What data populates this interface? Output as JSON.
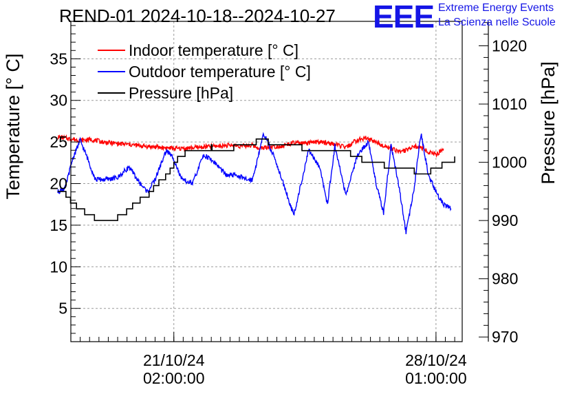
{
  "header": {
    "title": "REND-01 2024-10-18--2024-10-27",
    "logo_text": "EEE",
    "logo_line1": "Extreme Energy Events",
    "logo_line2": "La Scienza nelle Scuole"
  },
  "colors": {
    "indoor": "#ff0000",
    "outdoor": "#0000ff",
    "pressure": "#000000",
    "logo": "#1515e6",
    "grid": "#9a9a9a"
  },
  "chart_data": {
    "type": "line",
    "title": "REND-01 2024-10-18--2024-10-27",
    "ylabel": "Temperature [° C]",
    "y2label": "Pressure [hPa]",
    "xlabel": "",
    "ylim": [
      1,
      39.5
    ],
    "y2lim": [
      969.2,
      1024.2
    ],
    "xlim": [
      -2.75,
      7.7
    ],
    "grid": true,
    "legend_position": "top-left",
    "x_unit": "days since 21/10/24 02:00:00",
    "yticks": [
      5,
      10,
      15,
      20,
      25,
      30,
      35
    ],
    "y2ticks": [
      970,
      980,
      990,
      1000,
      1010,
      1020
    ],
    "xticks": [
      {
        "value": 0.0,
        "line1": "21/10/24",
        "line2": "02:00:00"
      },
      {
        "value": 7.0,
        "line1": "28/10/24",
        "line2": "01:00:00"
      }
    ],
    "series": [
      {
        "name": "Indoor temperature [° C]",
        "axis": "left",
        "x": [
          -3.1,
          -2.8,
          -2.5,
          -2.2,
          -1.9,
          -1.5,
          -1.2,
          -0.8,
          -0.5,
          -0.2,
          0.1,
          0.5,
          0.8,
          1.1,
          1.5,
          1.8,
          2.1,
          2.3,
          2.5,
          2.9,
          3.2,
          3.5,
          3.8,
          4.1,
          4.4,
          4.6,
          4.8,
          5.1,
          5.4,
          5.6,
          5.8,
          6.1,
          6.4,
          6.6,
          6.8,
          7.0,
          7.2
        ],
        "values": [
          25.6,
          25.4,
          25.2,
          25.3,
          25.0,
          24.8,
          24.7,
          24.5,
          24.4,
          24.3,
          24.2,
          24.3,
          24.4,
          24.5,
          24.6,
          24.5,
          24.6,
          24.2,
          24.4,
          24.5,
          24.9,
          24.8,
          25.0,
          24.9,
          24.6,
          24.3,
          25.0,
          25.5,
          25.0,
          24.6,
          24.2,
          23.8,
          24.5,
          24.3,
          23.8,
          23.5,
          24.2
        ]
      },
      {
        "name": "Outdoor temperature [° C]",
        "axis": "left",
        "x": [
          -3.1,
          -2.9,
          -2.7,
          -2.5,
          -2.3,
          -2.1,
          -1.8,
          -1.5,
          -1.2,
          -0.9,
          -0.7,
          -0.5,
          -0.2,
          0.0,
          0.2,
          0.5,
          0.8,
          1.1,
          1.4,
          1.7,
          1.9,
          2.1,
          2.4,
          2.7,
          3.0,
          3.2,
          3.4,
          3.6,
          3.9,
          4.1,
          4.3,
          4.6,
          4.9,
          5.2,
          5.4,
          5.6,
          5.8,
          6.0,
          6.2,
          6.4,
          6.6,
          6.8,
          7.0,
          7.2,
          7.4
        ],
        "values": [
          19.0,
          19.5,
          23.0,
          25.2,
          23.0,
          20.5,
          20.5,
          20.7,
          22.0,
          20.0,
          19.0,
          20.5,
          24.0,
          23.0,
          20.5,
          20.0,
          23.5,
          22.5,
          21.0,
          21.0,
          20.5,
          20.5,
          26.0,
          23.0,
          19.0,
          16.2,
          20.0,
          24.0,
          22.0,
          17.5,
          24.5,
          18.5,
          23.5,
          25.0,
          20.0,
          16.5,
          24.5,
          20.0,
          14.0,
          19.0,
          26.0,
          21.0,
          19.0,
          17.5,
          17.0
        ]
      },
      {
        "name": "Pressure [hPa]",
        "axis": "right",
        "x": [
          -3.1,
          -2.9,
          -2.7,
          -2.5,
          -2.3,
          -2.0,
          -1.7,
          -1.4,
          -1.1,
          -0.9,
          -0.7,
          -0.5,
          -0.3,
          -0.1,
          0.1,
          0.4,
          0.7,
          1.0,
          1.3,
          1.6,
          1.9,
          2.2,
          2.5,
          2.8,
          3.1,
          3.4,
          3.7,
          4.0,
          4.3,
          4.6,
          4.9,
          5.2,
          5.5,
          5.8,
          6.1,
          6.3,
          6.5,
          6.8,
          7.0,
          7.3,
          7.5
        ],
        "values": [
          995.2,
          994.5,
          993.0,
          991.8,
          991.2,
          990.0,
          990.0,
          990.8,
          992.5,
          993.5,
          994.2,
          996.0,
          997.0,
          998.5,
          1000.5,
          1002.0,
          1002.0,
          1002.5,
          1002.0,
          1002.5,
          1003.0,
          1003.5,
          1003.5,
          1003.2,
          1003.0,
          1002.5,
          1002.2,
          1002.0,
          1001.5,
          1001.8,
          1001.0,
          999.5,
          999.8,
          999.0,
          998.8,
          998.8,
          998.2,
          998.2,
          999.2,
          999.8,
          1000.5
        ]
      }
    ]
  }
}
